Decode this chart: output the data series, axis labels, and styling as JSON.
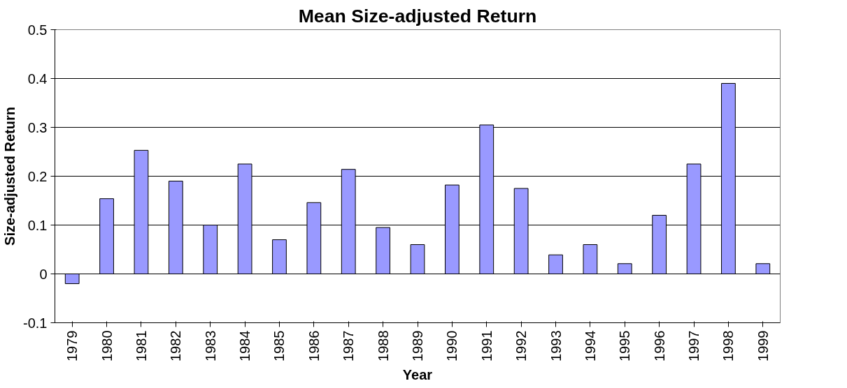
{
  "chart_data": {
    "type": "bar",
    "title": "Mean Size-adjusted Return",
    "xlabel": "Year",
    "ylabel": "Size-adjusted Return",
    "categories": [
      "1979",
      "1980",
      "1981",
      "1982",
      "1983",
      "1984",
      "1985",
      "1986",
      "1987",
      "1988",
      "1989",
      "1990",
      "1991",
      "1992",
      "1993",
      "1994",
      "1995",
      "1996",
      "1997",
      "1998",
      "1999"
    ],
    "values": [
      -0.02,
      0.154,
      0.253,
      0.19,
      0.1,
      0.225,
      0.07,
      0.146,
      0.214,
      0.095,
      0.06,
      0.182,
      0.305,
      0.175,
      0.039,
      0.06,
      0.021,
      0.12,
      0.225,
      0.39,
      0.021
    ],
    "color": "#9999ff",
    "ylim": [
      -0.1,
      0.5
    ],
    "yticks": [
      -0.1,
      0,
      0.1,
      0.2,
      0.3,
      0.4,
      0.5
    ],
    "grid": "y"
  }
}
